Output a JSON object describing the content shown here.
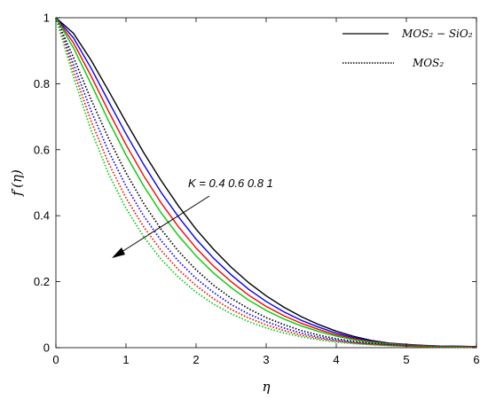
{
  "chart_data": {
    "type": "line",
    "xlabel": "η",
    "ylabel": "f′(η)",
    "xlim": [
      0,
      6
    ],
    "ylim": [
      0,
      1
    ],
    "xticks": [
      0,
      1,
      2,
      3,
      4,
      5,
      6
    ],
    "yticks": [
      0,
      0.2,
      0.4,
      0.6,
      0.8,
      1
    ],
    "xtick_labels": [
      "0",
      "1",
      "2",
      "3",
      "4",
      "5",
      "6"
    ],
    "ytick_labels": [
      "0",
      "0.2",
      "0.4",
      "0.6",
      "0.8",
      "1"
    ],
    "grid": false,
    "x": [
      0,
      0.25,
      0.5,
      0.75,
      1,
      1.25,
      1.5,
      1.75,
      2,
      2.25,
      2.5,
      2.75,
      3,
      3.25,
      3.5,
      3.75,
      4,
      4.25,
      4.5,
      4.75,
      5,
      5.25,
      5.5,
      5.75,
      6
    ],
    "legend": {
      "position": "top-right",
      "entries": [
        {
          "label": "MOS₂ − SiO₂",
          "style": "solid"
        },
        {
          "label": "MOS₂",
          "style": "dotted"
        }
      ]
    },
    "annotation": {
      "text": "K = 0.4 0.6 0.8 1"
    },
    "series": [
      {
        "group": "solid",
        "color": "#000000",
        "values": [
          1,
          0.953,
          0.872,
          0.779,
          0.684,
          0.592,
          0.507,
          0.429,
          0.359,
          0.298,
          0.244,
          0.197,
          0.157,
          0.123,
          0.094,
          0.07,
          0.05,
          0.034,
          0.022,
          0.014,
          0.01,
          0.007,
          0.005,
          0.004,
          0.003
        ]
      },
      {
        "group": "solid",
        "color": "#0000ff",
        "values": [
          1,
          0.939,
          0.848,
          0.747,
          0.648,
          0.556,
          0.471,
          0.396,
          0.329,
          0.271,
          0.221,
          0.177,
          0.14,
          0.109,
          0.083,
          0.062,
          0.044,
          0.03,
          0.02,
          0.013,
          0.009,
          0.006,
          0.005,
          0.004,
          0.003
        ]
      },
      {
        "group": "solid",
        "color": "#ff0000",
        "values": [
          1,
          0.924,
          0.824,
          0.717,
          0.615,
          0.522,
          0.439,
          0.366,
          0.302,
          0.247,
          0.2,
          0.159,
          0.125,
          0.097,
          0.074,
          0.055,
          0.039,
          0.027,
          0.018,
          0.012,
          0.008,
          0.006,
          0.004,
          0.003,
          0.003
        ]
      },
      {
        "group": "solid",
        "color": "#00cc00",
        "values": [
          1,
          0.909,
          0.8,
          0.688,
          0.584,
          0.491,
          0.409,
          0.339,
          0.278,
          0.226,
          0.182,
          0.144,
          0.113,
          0.087,
          0.066,
          0.049,
          0.035,
          0.024,
          0.016,
          0.011,
          0.007,
          0.005,
          0.004,
          0.003,
          0.002
        ]
      },
      {
        "group": "dotted",
        "color": "#000000",
        "values": [
          1,
          0.88,
          0.753,
          0.635,
          0.53,
          0.438,
          0.359,
          0.292,
          0.236,
          0.189,
          0.15,
          0.118,
          0.091,
          0.07,
          0.052,
          0.038,
          0.027,
          0.019,
          0.013,
          0.009,
          0.006,
          0.004,
          0.003,
          0.002,
          0.002
        ]
      },
      {
        "group": "dotted",
        "color": "#0000ff",
        "values": [
          1,
          0.859,
          0.719,
          0.596,
          0.49,
          0.4,
          0.325,
          0.262,
          0.21,
          0.167,
          0.131,
          0.102,
          0.079,
          0.06,
          0.044,
          0.032,
          0.023,
          0.016,
          0.011,
          0.008,
          0.005,
          0.004,
          0.003,
          0.002,
          0.002
        ]
      },
      {
        "group": "dotted",
        "color": "#ff0000",
        "values": [
          1,
          0.84,
          0.688,
          0.56,
          0.454,
          0.367,
          0.295,
          0.236,
          0.188,
          0.148,
          0.116,
          0.09,
          0.069,
          0.052,
          0.038,
          0.028,
          0.02,
          0.014,
          0.01,
          0.007,
          0.005,
          0.003,
          0.002,
          0.002,
          0.001
        ]
      },
      {
        "group": "dotted",
        "color": "#00cc00",
        "values": [
          1,
          0.821,
          0.66,
          0.528,
          0.422,
          0.337,
          0.268,
          0.213,
          0.168,
          0.132,
          0.103,
          0.079,
          0.06,
          0.045,
          0.033,
          0.024,
          0.017,
          0.012,
          0.009,
          0.006,
          0.004,
          0.003,
          0.002,
          0.001,
          0.001
        ]
      }
    ]
  }
}
